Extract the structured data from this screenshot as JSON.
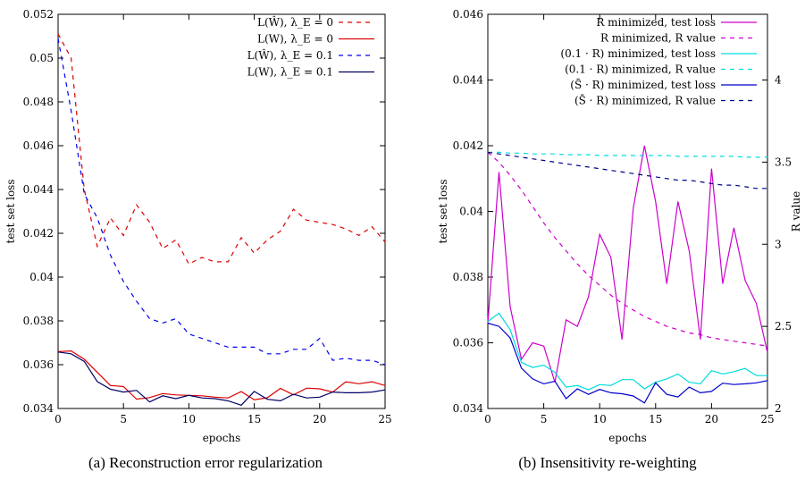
{
  "chart_data": [
    {
      "type": "line",
      "caption": "(a) Reconstruction error regularization",
      "xlabel": "epochs",
      "ylabel": "test set loss",
      "xlim": [
        0,
        25
      ],
      "ylim": [
        0.034,
        0.052
      ],
      "xticks": [
        0,
        5,
        10,
        15,
        20,
        25
      ],
      "yticks": [
        0.034,
        0.036,
        0.038,
        0.04,
        0.042,
        0.044,
        0.046,
        0.048,
        0.05,
        0.052
      ],
      "legend_position": "top-right",
      "grid": false,
      "x": [
        0,
        1,
        2,
        3,
        4,
        5,
        6,
        7,
        8,
        9,
        10,
        11,
        12,
        13,
        14,
        15,
        16,
        17,
        18,
        19,
        20,
        21,
        22,
        23,
        24,
        25
      ],
      "series": [
        {
          "name": "L(Ŵ), λ_E = 0",
          "color": "#dd0000",
          "dash": "dashed",
          "values": [
            0.0511,
            0.05,
            0.044,
            0.0414,
            0.0427,
            0.0419,
            0.0433,
            0.0425,
            0.0413,
            0.0417,
            0.0406,
            0.0409,
            0.0407,
            0.0407,
            0.0418,
            0.0411,
            0.0417,
            0.0421,
            0.0431,
            0.0426,
            0.0425,
            0.0424,
            0.0422,
            0.0419,
            0.0423,
            0.0416
          ]
        },
        {
          "name": "L(W), λ_E = 0",
          "color": "#dd0000",
          "dash": "solid",
          "values": [
            0.0366,
            0.03663,
            0.03625,
            0.03565,
            0.03505,
            0.035,
            0.03443,
            0.0345,
            0.03468,
            0.03462,
            0.0346,
            0.03458,
            0.03452,
            0.03448,
            0.03477,
            0.0344,
            0.03449,
            0.03492,
            0.03462,
            0.03493,
            0.0349,
            0.03475,
            0.03522,
            0.03513,
            0.03522,
            0.03505
          ]
        },
        {
          "name": "L(Ŵ), λ_E = 0.1",
          "color": "#0000ee",
          "dash": "dashed",
          "values": [
            0.0509,
            0.0476,
            0.0438,
            0.0427,
            0.041,
            0.0398,
            0.0389,
            0.0381,
            0.0379,
            0.0381,
            0.0374,
            0.0372,
            0.037,
            0.0368,
            0.0368,
            0.0368,
            0.0365,
            0.0365,
            0.0367,
            0.0367,
            0.0372,
            0.0362,
            0.0363,
            0.0362,
            0.0362,
            0.036
          ]
        },
        {
          "name": "L(W), λ_E = 0.1",
          "color": "#000066",
          "dash": "solid",
          "values": [
            0.03658,
            0.0365,
            0.03615,
            0.03523,
            0.03488,
            0.03475,
            0.03483,
            0.0343,
            0.03458,
            0.03445,
            0.0346,
            0.03448,
            0.03445,
            0.03435,
            0.03415,
            0.03478,
            0.03442,
            0.03435,
            0.03465,
            0.03448,
            0.03452,
            0.03475,
            0.03472,
            0.03472,
            0.03475,
            0.03485
          ]
        }
      ]
    },
    {
      "type": "line",
      "caption": "(b) Insensitivity re-weighting",
      "xlabel": "epochs",
      "ylabel": "test set loss",
      "y2label": "R value",
      "xlim": [
        0,
        25
      ],
      "ylim": [
        0.034,
        0.046
      ],
      "y2lim": [
        2,
        4.4
      ],
      "xticks": [
        0,
        5,
        10,
        15,
        20,
        25
      ],
      "yticks": [
        0.034,
        0.036,
        0.038,
        0.04,
        0.042,
        0.044,
        0.046
      ],
      "y2ticks": [
        2,
        2.5,
        3,
        3.5,
        4
      ],
      "legend_position": "top-right",
      "grid": false,
      "x": [
        0,
        1,
        2,
        3,
        4,
        5,
        6,
        7,
        8,
        9,
        10,
        11,
        12,
        13,
        14,
        15,
        16,
        17,
        18,
        19,
        20,
        21,
        22,
        23,
        24,
        25
      ],
      "series": [
        {
          "name": "R minimized, test loss",
          "axis": "left",
          "color": "#cc00cc",
          "dash": "solid",
          "values": [
            0.0366,
            0.0412,
            0.0371,
            0.0355,
            0.036,
            0.0359,
            0.0348,
            0.0367,
            0.0365,
            0.0374,
            0.0393,
            0.0386,
            0.0361,
            0.0401,
            0.042,
            0.0403,
            0.0378,
            0.0403,
            0.0388,
            0.0361,
            0.0413,
            0.0378,
            0.0395,
            0.0379,
            0.0372,
            0.0357
          ]
        },
        {
          "name": "R minimized, R value",
          "axis": "right",
          "color": "#cc00cc",
          "dash": "dashed",
          "values": [
            3.56,
            3.5,
            3.42,
            3.33,
            3.23,
            3.13,
            3.04,
            2.96,
            2.88,
            2.81,
            2.75,
            2.69,
            2.64,
            2.6,
            2.56,
            2.53,
            2.5,
            2.48,
            2.46,
            2.45,
            2.43,
            2.42,
            2.41,
            2.4,
            2.39,
            2.38
          ]
        },
        {
          "name": "(0.1 · R) minimized, test loss",
          "axis": "left",
          "color": "#00dddd",
          "dash": "solid",
          "values": [
            0.03665,
            0.0369,
            0.0364,
            0.0354,
            0.03525,
            0.03532,
            0.0351,
            0.03465,
            0.0347,
            0.03457,
            0.03473,
            0.0347,
            0.03488,
            0.03488,
            0.0346,
            0.0348,
            0.0349,
            0.03505,
            0.0348,
            0.03475,
            0.03515,
            0.03505,
            0.03512,
            0.03522,
            0.035,
            0.035
          ]
        },
        {
          "name": "(0.1 · R) minimized, R value",
          "axis": "right",
          "color": "#00dddd",
          "dash": "dashed",
          "values": [
            3.56,
            3.56,
            3.555,
            3.555,
            3.55,
            3.55,
            3.55,
            3.545,
            3.545,
            3.545,
            3.54,
            3.54,
            3.54,
            3.54,
            3.54,
            3.54,
            3.54,
            3.535,
            3.535,
            3.535,
            3.535,
            3.535,
            3.535,
            3.53,
            3.53,
            3.53
          ]
        },
        {
          "name": "(S̄ · R) minimized, test loss",
          "axis": "left",
          "color": "#0000cc",
          "dash": "solid",
          "values": [
            0.0366,
            0.0365,
            0.03615,
            0.03523,
            0.0349,
            0.03475,
            0.03483,
            0.0343,
            0.0346,
            0.03443,
            0.03458,
            0.03448,
            0.03445,
            0.03438,
            0.03417,
            0.03478,
            0.03443,
            0.03435,
            0.03465,
            0.03448,
            0.03452,
            0.03477,
            0.03473,
            0.03475,
            0.03478,
            0.03485
          ]
        },
        {
          "name": "(S̄ · R) minimized, R value",
          "axis": "right",
          "color": "#000088",
          "dash": "dashed",
          "values": [
            3.56,
            3.55,
            3.54,
            3.53,
            3.52,
            3.51,
            3.5,
            3.49,
            3.48,
            3.47,
            3.46,
            3.45,
            3.44,
            3.43,
            3.42,
            3.41,
            3.4,
            3.39,
            3.39,
            3.38,
            3.37,
            3.36,
            3.36,
            3.35,
            3.34,
            3.34
          ]
        }
      ]
    }
  ]
}
